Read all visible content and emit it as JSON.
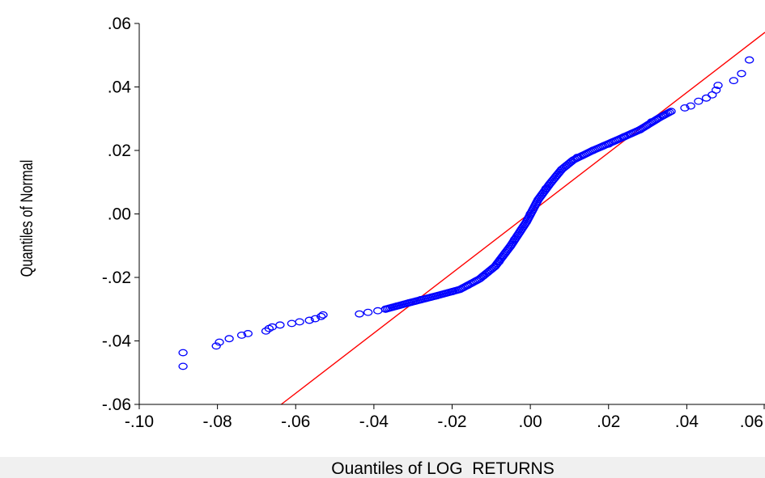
{
  "chart_data": {
    "type": "scatter",
    "xlabel": "Quantiles of LOG_RETURNS",
    "ylabel": "Quantiles of Normal",
    "xlim": [
      -0.1,
      0.06
    ],
    "ylim": [
      -0.06,
      0.06
    ],
    "x_ticks": [
      -0.1,
      -0.08,
      -0.06,
      -0.04,
      -0.02,
      0.0,
      0.02,
      0.04,
      0.06
    ],
    "y_ticks": [
      -0.06,
      -0.04,
      -0.02,
      0.0,
      0.02,
      0.04,
      0.06
    ],
    "x_tick_labels": [
      "-.10",
      "-.08",
      "-.06",
      "-.04",
      "-.02",
      ".00",
      ".02",
      ".04",
      ".06"
    ],
    "y_tick_labels": [
      "-.06",
      "-.04",
      "-.02",
      ".00",
      ".02",
      ".04",
      ".06"
    ],
    "grid": false,
    "reference_line": {
      "color": "#ff0000",
      "points": [
        [
          -0.0637,
          -0.06
        ],
        [
          0.06,
          0.0572
        ]
      ]
    },
    "series": [
      {
        "marker": "open-circle",
        "color": "#0000ff",
        "points": [
          [
            -0.0888,
            -0.048
          ],
          [
            -0.0888,
            -0.0437
          ],
          [
            -0.0803,
            -0.0416
          ],
          [
            -0.0795,
            -0.0404
          ],
          [
            -0.077,
            -0.0393
          ],
          [
            -0.0738,
            -0.0382
          ],
          [
            -0.0722,
            -0.0377
          ],
          [
            -0.0676,
            -0.0369
          ],
          [
            -0.0668,
            -0.0361
          ],
          [
            -0.066,
            -0.0356
          ],
          [
            -0.064,
            -0.035
          ],
          [
            -0.061,
            -0.0345
          ],
          [
            -0.059,
            -0.034
          ],
          [
            -0.0565,
            -0.0335
          ],
          [
            -0.055,
            -0.033
          ],
          [
            -0.0535,
            -0.0323
          ],
          [
            -0.053,
            -0.0318
          ],
          [
            -0.0437,
            -0.0315
          ],
          [
            -0.0415,
            -0.031
          ],
          [
            -0.039,
            -0.0305
          ],
          [
            -0.037,
            -0.03
          ],
          [
            -0.034,
            -0.029
          ],
          [
            -0.031,
            -0.028
          ],
          [
            -0.028,
            -0.027
          ],
          [
            -0.024,
            -0.0258
          ],
          [
            -0.02,
            -0.0245
          ],
          [
            -0.016,
            -0.0225
          ],
          [
            -0.012,
            -0.0195
          ],
          [
            -0.008,
            -0.015
          ],
          [
            -0.004,
            -0.008
          ],
          [
            0.0,
            0.0
          ],
          [
            0.004,
            0.008
          ],
          [
            0.008,
            0.014
          ],
          [
            0.012,
            0.0178
          ],
          [
            0.016,
            0.02
          ],
          [
            0.02,
            0.022
          ],
          [
            0.024,
            0.0243
          ],
          [
            0.028,
            0.0265
          ],
          [
            0.031,
            0.029
          ],
          [
            0.034,
            0.031
          ],
          [
            0.036,
            0.0323
          ],
          [
            0.0395,
            0.0334
          ],
          [
            0.041,
            0.034
          ],
          [
            0.043,
            0.0355
          ],
          [
            0.045,
            0.0365
          ],
          [
            0.0465,
            0.0375
          ],
          [
            0.0475,
            0.039
          ],
          [
            0.048,
            0.0405
          ],
          [
            0.052,
            0.042
          ],
          [
            0.054,
            0.0442
          ],
          [
            0.056,
            0.0485
          ]
        ],
        "dense_segments": [
          [
            [
              -0.037,
              -0.03
            ],
            [
              -0.031,
              -0.028
            ],
            [
              -0.024,
              -0.0258
            ],
            [
              -0.018,
              -0.0238
            ],
            [
              -0.013,
              -0.0205
            ],
            [
              -0.009,
              -0.0165
            ],
            [
              -0.005,
              -0.01
            ],
            [
              -0.001,
              -0.0025
            ],
            [
              0.002,
              0.0045
            ],
            [
              0.005,
              0.0095
            ],
            [
              0.008,
              0.014
            ],
            [
              0.011,
              0.017
            ],
            [
              0.016,
              0.02
            ],
            [
              0.022,
              0.0232
            ],
            [
              0.028,
              0.0265
            ],
            [
              0.033,
              0.0303
            ],
            [
              0.036,
              0.0323
            ]
          ]
        ]
      }
    ]
  }
}
